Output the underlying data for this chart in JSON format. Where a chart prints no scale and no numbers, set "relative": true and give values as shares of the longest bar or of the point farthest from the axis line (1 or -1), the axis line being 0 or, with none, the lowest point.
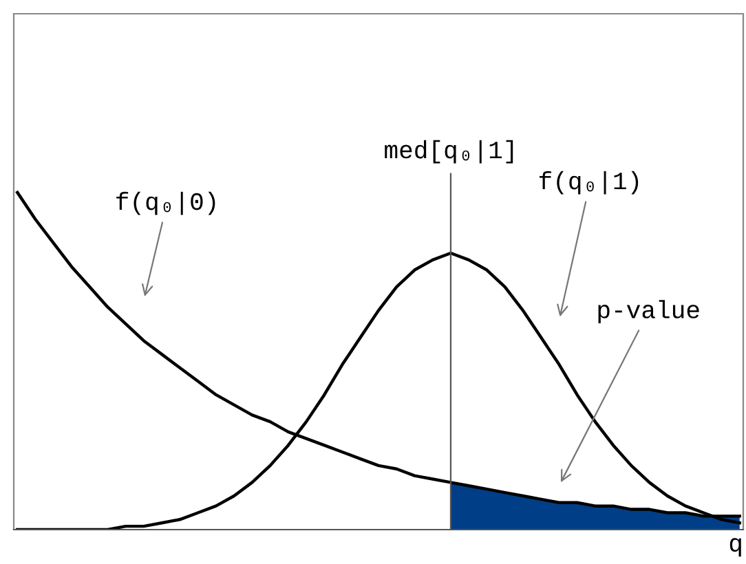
{
  "chart_data": {
    "type": "line",
    "relative": true,
    "xlabel": "q",
    "legend": false,
    "marker": "none",
    "line_style": "solid",
    "categories": [
      null,
      null,
      null,
      null,
      null,
      null,
      null,
      null,
      null,
      null,
      null,
      null,
      null,
      null,
      null,
      null,
      null,
      null,
      null,
      null,
      null,
      null,
      null,
      null,
      null,
      null,
      null,
      null,
      null,
      null,
      null,
      null,
      null,
      null,
      null,
      null,
      null,
      null,
      null,
      null,
      null
    ],
    "series": [
      {
        "name": "f(q₀|0)",
        "color": "#000000",
        "values": [
          1.0,
          0.92,
          0.85,
          0.78,
          0.72,
          0.66,
          0.61,
          0.56,
          0.52,
          0.48,
          0.44,
          0.4,
          0.37,
          0.34,
          0.32,
          0.29,
          0.27,
          0.25,
          0.23,
          0.21,
          0.19,
          0.18,
          0.16,
          0.15,
          0.14,
          0.13,
          0.12,
          0.11,
          0.1,
          0.09,
          0.08,
          0.08,
          0.07,
          0.07,
          0.06,
          0.06,
          0.05,
          0.05,
          0.04,
          0.04,
          0.04
        ]
      },
      {
        "name": "f(q₀|1)",
        "color": "#000000",
        "values": [
          0.0,
          0.0,
          0.0,
          0.0,
          0.0,
          0.0,
          0.01,
          0.01,
          0.02,
          0.03,
          0.05,
          0.07,
          0.1,
          0.14,
          0.19,
          0.25,
          0.32,
          0.4,
          0.49,
          0.57,
          0.65,
          0.72,
          0.77,
          0.8,
          0.82,
          0.8,
          0.77,
          0.72,
          0.65,
          0.57,
          0.49,
          0.4,
          0.32,
          0.25,
          0.19,
          0.14,
          0.1,
          0.07,
          0.05,
          0.03,
          0.02
        ]
      },
      {
        "name": "p-value",
        "type": "area",
        "color": "#003f87",
        "values": [
          null,
          null,
          null,
          null,
          null,
          null,
          null,
          null,
          null,
          null,
          null,
          null,
          null,
          null,
          null,
          null,
          null,
          null,
          null,
          null,
          null,
          null,
          null,
          null,
          0.14,
          0.13,
          0.12,
          0.11,
          0.1,
          0.09,
          0.08,
          0.08,
          0.07,
          0.07,
          0.06,
          0.06,
          0.05,
          0.05,
          0.04,
          0.04,
          0.04
        ]
      }
    ],
    "annotations": [
      "med[q₀|1]"
    ]
  }
}
